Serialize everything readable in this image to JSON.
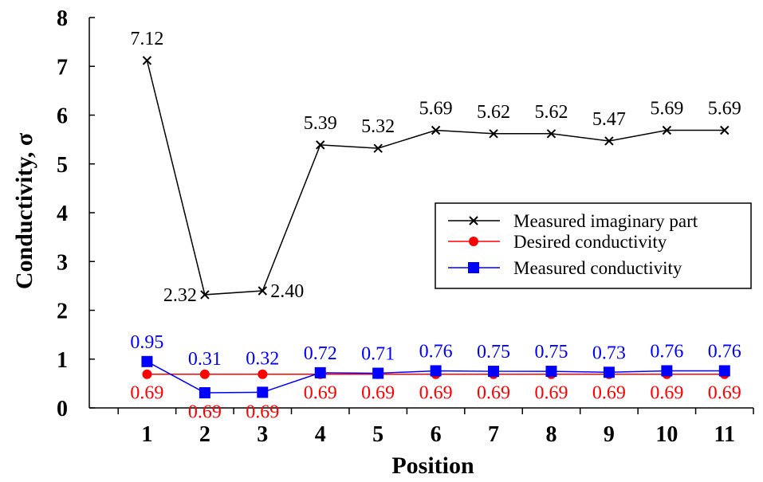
{
  "chart_data": {
    "type": "line",
    "xlabel": "Position",
    "ylabel": "Conductivity, σ",
    "x": [
      1,
      2,
      3,
      4,
      5,
      6,
      7,
      8,
      9,
      10,
      11
    ],
    "xlim": [
      0,
      11.5
    ],
    "ylim": [
      0,
      8
    ],
    "yticks": [
      0,
      1,
      2,
      3,
      4,
      5,
      6,
      7,
      8
    ],
    "grid": false,
    "legend_position": "right",
    "series": [
      {
        "name": "Measured imaginary part",
        "color": "#000000",
        "marker": "x",
        "values": [
          7.12,
          2.32,
          2.4,
          5.39,
          5.32,
          5.69,
          5.62,
          5.62,
          5.47,
          5.69,
          5.69
        ],
        "labels": [
          "7.12",
          "2.32",
          "2.40",
          "5.39",
          "5.32",
          "5.69",
          "5.62",
          "5.62",
          "5.47",
          "5.69",
          "5.69"
        ]
      },
      {
        "name": "Desired conductivity",
        "color": "#ff0000",
        "marker": "circle",
        "values": [
          0.69,
          0.69,
          0.69,
          0.69,
          0.69,
          0.69,
          0.69,
          0.69,
          0.69,
          0.69,
          0.69
        ],
        "labels": [
          "0.69",
          "0.69",
          "0.69",
          "0.69",
          "0.69",
          "0.69",
          "0.69",
          "0.69",
          "0.69",
          "0.69",
          "0.69"
        ]
      },
      {
        "name": "Measured conductivity",
        "color": "#0000ff",
        "marker": "square",
        "values": [
          0.95,
          0.31,
          0.32,
          0.72,
          0.71,
          0.76,
          0.75,
          0.75,
          0.73,
          0.76,
          0.76
        ],
        "labels": [
          "0.95",
          "0.31",
          "0.32",
          "0.72",
          "0.71",
          "0.76",
          "0.75",
          "0.75",
          "0.73",
          "0.76",
          "0.76"
        ]
      }
    ]
  }
}
